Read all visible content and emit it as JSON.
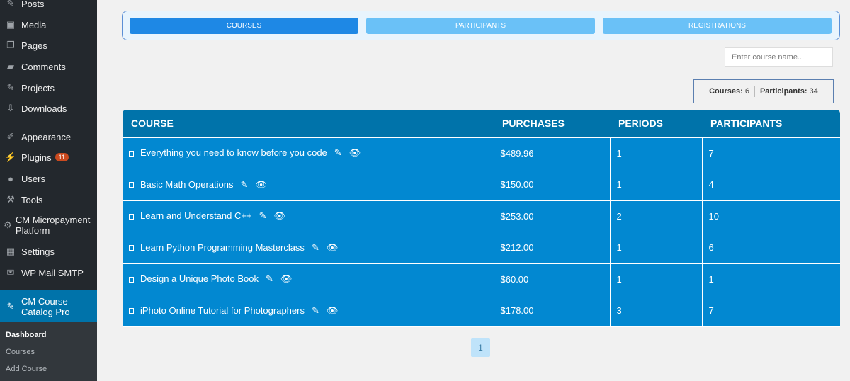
{
  "sidebar": {
    "items": [
      {
        "label": "Posts",
        "icon": "pin-icon"
      },
      {
        "label": "Media",
        "icon": "media-icon"
      },
      {
        "label": "Pages",
        "icon": "pages-icon"
      },
      {
        "label": "Comments",
        "icon": "comment-icon"
      },
      {
        "label": "Projects",
        "icon": "pin-icon"
      },
      {
        "label": "Downloads",
        "icon": "download-icon"
      },
      {
        "label": "Appearance",
        "icon": "brush-icon"
      },
      {
        "label": "Plugins",
        "icon": "plugin-icon",
        "badge": "11"
      },
      {
        "label": "Users",
        "icon": "user-icon"
      },
      {
        "label": "Tools",
        "icon": "wrench-icon"
      },
      {
        "label": "CM Micropayment Platform",
        "icon": "gear-icon"
      },
      {
        "label": "Settings",
        "icon": "settings-icon"
      },
      {
        "label": "WP Mail SMTP",
        "icon": "mail-icon"
      }
    ],
    "active": {
      "label": "CM Course Catalog Pro",
      "icon": "pin-icon"
    },
    "submenu": [
      "Dashboard",
      "Courses",
      "Add Course"
    ]
  },
  "tabs": [
    "COURSES",
    "PARTICIPANTS",
    "REGISTRATIONS"
  ],
  "search": {
    "placeholder": "Enter course name..."
  },
  "stats": {
    "courses_label": "Courses:",
    "courses": "6",
    "participants_label": "Participants:",
    "participants": "34"
  },
  "table": {
    "headers": [
      "COURSE",
      "PURCHASES",
      "PERIODS",
      "PARTICIPANTS"
    ],
    "rows": [
      [
        "Everything you need to know before you code",
        "$489.96",
        "1",
        "7"
      ],
      [
        "Basic Math Operations",
        "$150.00",
        "1",
        "4"
      ],
      [
        "Learn and Understand C++",
        "$253.00",
        "2",
        "10"
      ],
      [
        "Learn Python Programming Masterclass",
        "$212.00",
        "1",
        "6"
      ],
      [
        "Design a Unique Photo Book",
        "$60.00",
        "1",
        "1"
      ],
      [
        "iPhoto Online Tutorial for Photographers",
        "$178.00",
        "3",
        "7"
      ]
    ]
  },
  "pagination": {
    "current": "1"
  },
  "colors": {
    "sidebar": "#23282d",
    "active": "#0073aa",
    "header": "#0073aa",
    "row": "#0288d1",
    "tab_active": "#1e88e5",
    "tab": "#6ac1f7"
  }
}
